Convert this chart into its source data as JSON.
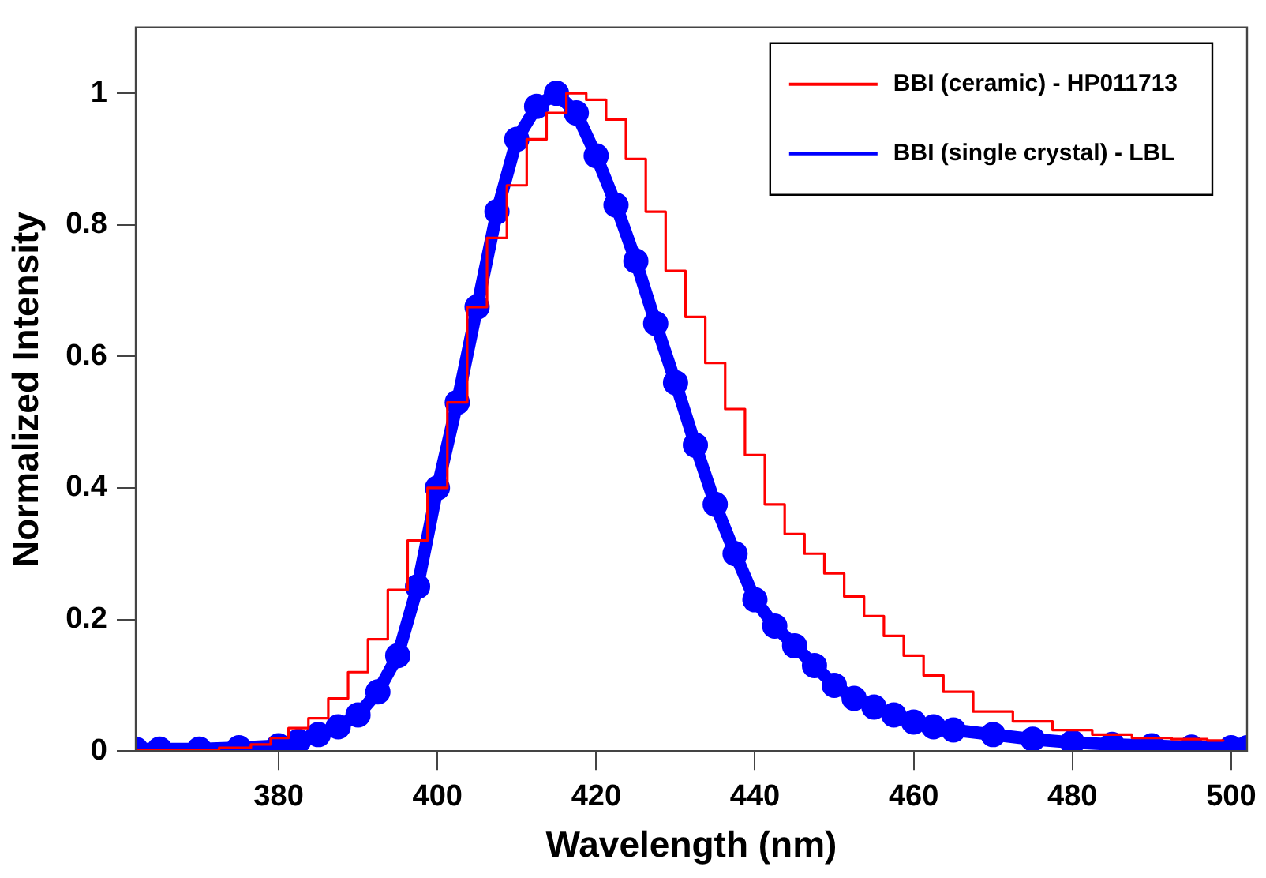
{
  "chart_data": {
    "type": "line",
    "xlabel": "Wavelength (nm)",
    "ylabel": "Normalized Intensity",
    "xlim": [
      362,
      502
    ],
    "ylim": [
      0,
      1.1
    ],
    "xticks": [
      380,
      400,
      420,
      440,
      460,
      480,
      500
    ],
    "yticks": [
      0,
      0.2,
      0.4,
      0.6,
      0.8,
      1
    ],
    "grid": false,
    "legend": "top right",
    "series": [
      {
        "name": "BBI (ceramic) - HP011713",
        "type": "step",
        "color": "#ff0000",
        "marker": "none",
        "x": [
          362,
          365,
          370,
          375,
          378,
          380,
          382.5,
          385,
          387.5,
          390,
          392.5,
          395,
          397.5,
          400,
          402.5,
          405,
          407.5,
          410,
          412.5,
          415,
          417.5,
          420,
          422.5,
          425,
          427.5,
          430,
          432.5,
          435,
          437.5,
          440,
          442.5,
          445,
          447.5,
          450,
          452.5,
          455,
          457.5,
          460,
          462.5,
          465,
          470,
          475,
          480,
          485,
          490,
          495,
          499
        ],
        "values": [
          0.002,
          0.002,
          0.002,
          0.005,
          0.01,
          0.02,
          0.035,
          0.05,
          0.08,
          0.12,
          0.17,
          0.245,
          0.32,
          0.4,
          0.53,
          0.675,
          0.78,
          0.86,
          0.93,
          0.97,
          1.0,
          0.99,
          0.96,
          0.9,
          0.82,
          0.73,
          0.66,
          0.59,
          0.52,
          0.45,
          0.375,
          0.33,
          0.3,
          0.27,
          0.235,
          0.205,
          0.175,
          0.145,
          0.115,
          0.09,
          0.06,
          0.045,
          0.032,
          0.025,
          0.02,
          0.018,
          0.016
        ]
      },
      {
        "name": "BBI (single crystal) - LBL",
        "color": "#0000ff",
        "marker": "circle",
        "x": [
          362,
          365,
          370,
          375,
          380,
          382.5,
          385,
          387.5,
          390,
          392.5,
          395,
          397.5,
          400,
          402.5,
          405,
          407.5,
          410,
          412.5,
          415,
          417.5,
          420,
          422.5,
          425,
          427.5,
          430,
          432.5,
          435,
          437.5,
          440,
          442.5,
          445,
          447.5,
          450,
          452.5,
          455,
          457.5,
          460,
          462.5,
          465,
          470,
          475,
          480,
          485,
          490,
          495,
          500,
          502
        ],
        "values": [
          0.003,
          0.003,
          0.003,
          0.005,
          0.008,
          0.015,
          0.025,
          0.037,
          0.055,
          0.09,
          0.145,
          0.25,
          0.4,
          0.53,
          0.675,
          0.82,
          0.93,
          0.98,
          1.0,
          0.97,
          0.905,
          0.83,
          0.745,
          0.65,
          0.56,
          0.465,
          0.375,
          0.3,
          0.23,
          0.19,
          0.16,
          0.13,
          0.1,
          0.08,
          0.067,
          0.055,
          0.044,
          0.037,
          0.032,
          0.025,
          0.018,
          0.013,
          0.01,
          0.008,
          0.006,
          0.005,
          0.005
        ]
      }
    ]
  }
}
